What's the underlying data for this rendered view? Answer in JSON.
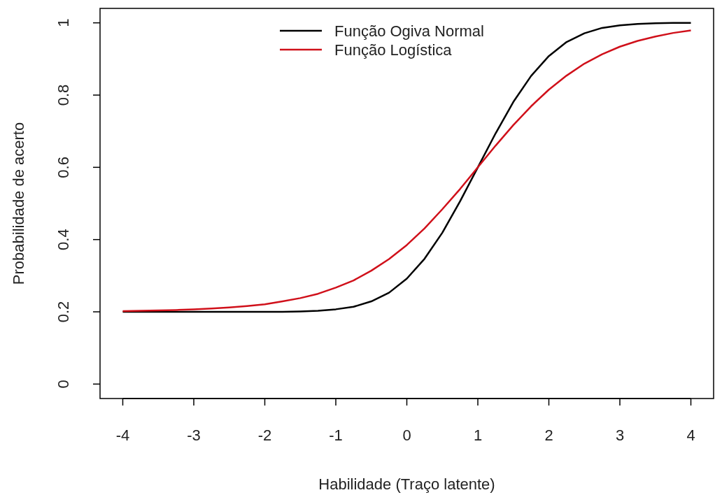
{
  "chart_data": {
    "type": "line",
    "xlabel": "Habilidade (Traço latente)",
    "ylabel": "Probabilidade de acerto",
    "x": [
      -4,
      -3.75,
      -3.5,
      -3.25,
      -3,
      -2.75,
      -2.5,
      -2.25,
      -2,
      -1.75,
      -1.5,
      -1.25,
      -1,
      -0.75,
      -0.5,
      -0.25,
      0,
      0.25,
      0.5,
      0.75,
      1,
      1.25,
      1.5,
      1.75,
      2,
      2.25,
      2.5,
      2.75,
      3,
      3.25,
      3.5,
      3.75,
      4
    ],
    "series": [
      {
        "name": "Função Ogiva Normal",
        "color": "#000000",
        "values": [
          0.2,
          0.2,
          0.2,
          0.2,
          0.2,
          0.2,
          0.2,
          0.2,
          0.2,
          0.2,
          0.201,
          0.203,
          0.207,
          0.214,
          0.229,
          0.253,
          0.292,
          0.347,
          0.419,
          0.506,
          0.6,
          0.694,
          0.781,
          0.853,
          0.908,
          0.947,
          0.971,
          0.986,
          0.993,
          0.997,
          0.999,
          1.0,
          1.0
        ]
      },
      {
        "name": "Função Logística",
        "color": "#d0101a",
        "values": [
          0.202,
          0.203,
          0.204,
          0.205,
          0.207,
          0.209,
          0.212,
          0.216,
          0.221,
          0.229,
          0.238,
          0.25,
          0.267,
          0.287,
          0.314,
          0.346,
          0.385,
          0.431,
          0.484,
          0.54,
          0.6,
          0.66,
          0.717,
          0.769,
          0.815,
          0.854,
          0.887,
          0.913,
          0.934,
          0.95,
          0.962,
          0.972,
          0.979
        ]
      }
    ],
    "xlim": [
      -4.32,
      4.32
    ],
    "ylim": [
      -0.04,
      1.04
    ],
    "xticks": [
      -4,
      -3,
      -2,
      -1,
      0,
      1,
      2,
      3,
      4
    ],
    "yticks": [
      0,
      0.2,
      0.4,
      0.6,
      0.8,
      1
    ],
    "grid": false,
    "legend": "top",
    "line_style": "solid",
    "marker": "none"
  }
}
